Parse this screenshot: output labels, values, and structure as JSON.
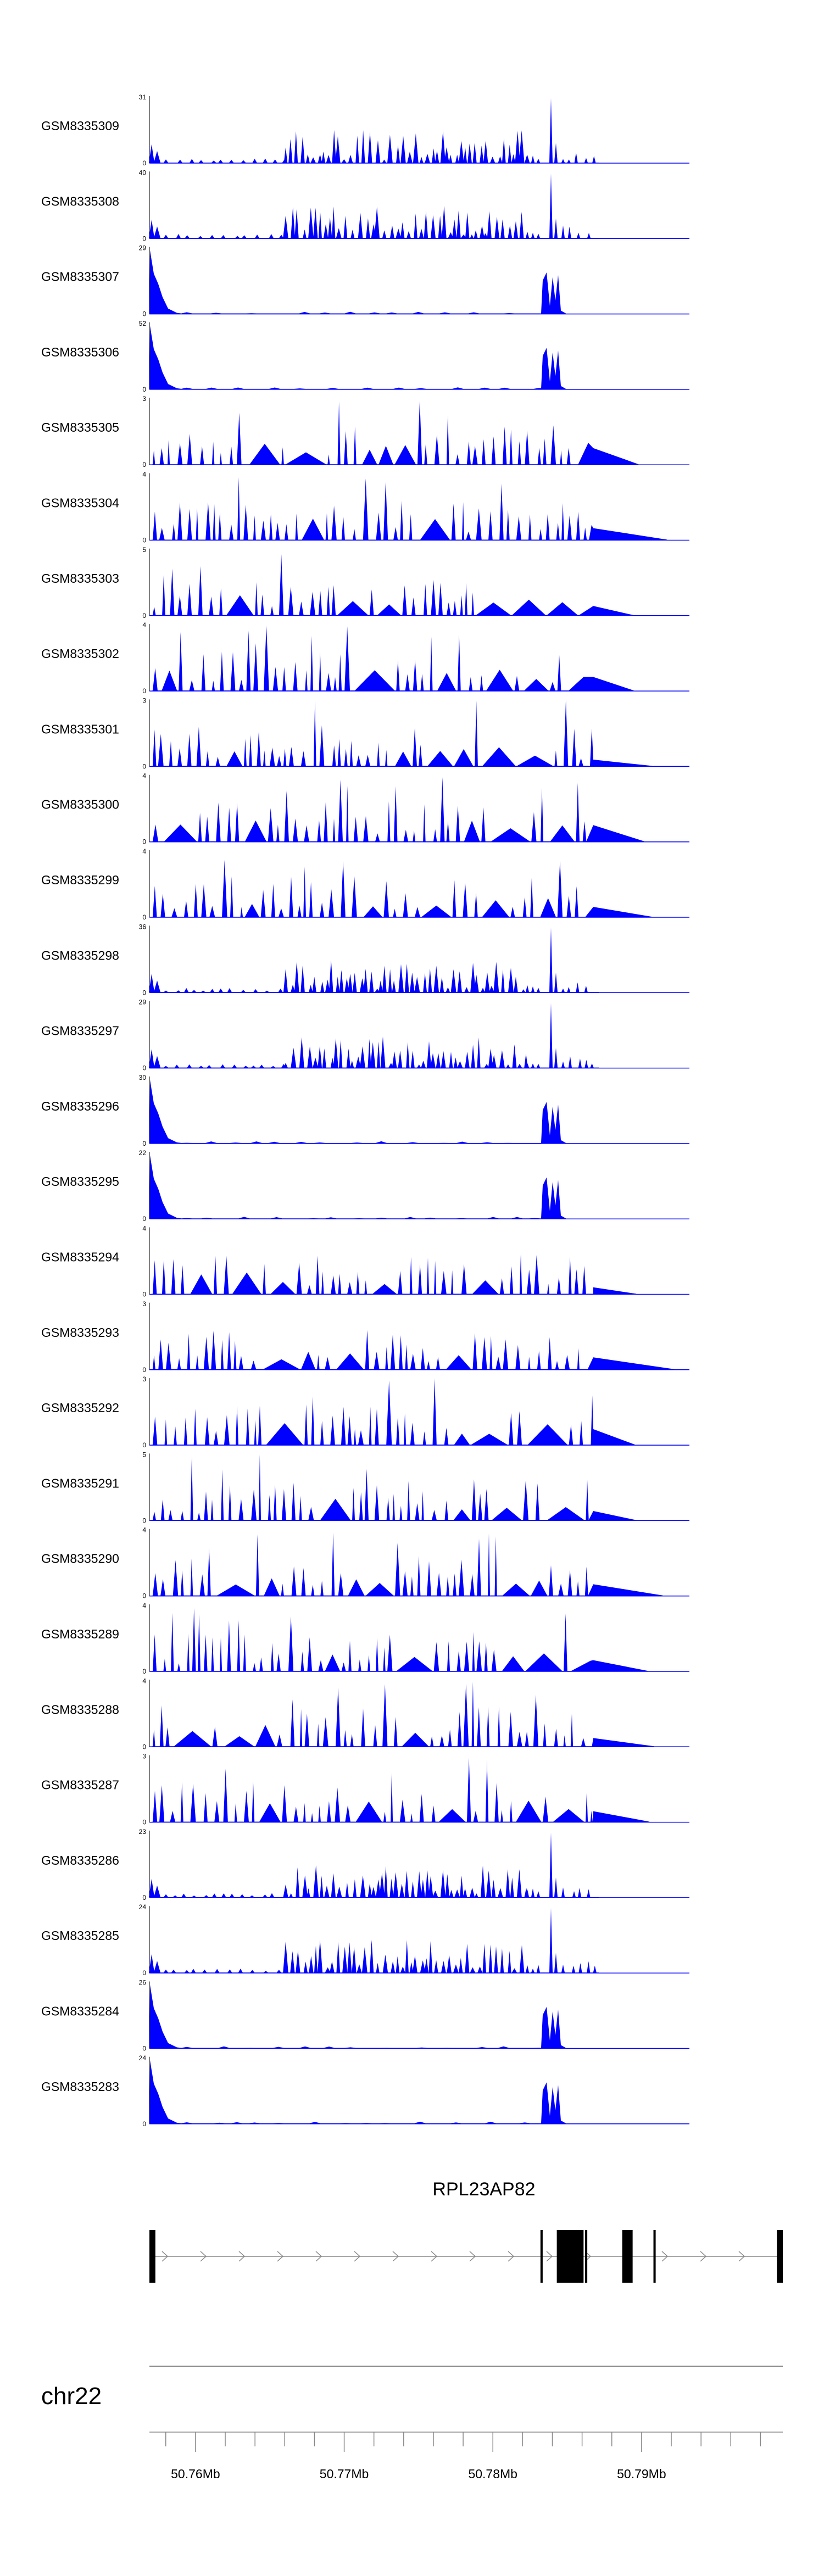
{
  "chart_data": {
    "type": "area",
    "colors": {
      "signal": "#0000ff",
      "gene": "#000000",
      "axis": "#888888"
    },
    "x_range_bp": [
      50756900,
      50799500
    ],
    "tracks": [
      {
        "name": "GSM8335309",
        "ymax": "31",
        "profile": "late"
      },
      {
        "name": "GSM8335308",
        "ymax": "40",
        "profile": "late"
      },
      {
        "name": "GSM8335307",
        "ymax": "29",
        "profile": "edges"
      },
      {
        "name": "GSM8335306",
        "ymax": "52",
        "profile": "edges"
      },
      {
        "name": "GSM8335305",
        "ymax": "3",
        "profile": "sparse"
      },
      {
        "name": "GSM8335304",
        "ymax": "4",
        "profile": "sparse"
      },
      {
        "name": "GSM8335303",
        "ymax": "5",
        "profile": "sparse"
      },
      {
        "name": "GSM8335302",
        "ymax": "4",
        "profile": "sparse"
      },
      {
        "name": "GSM8335301",
        "ymax": "3",
        "profile": "sparse"
      },
      {
        "name": "GSM8335300",
        "ymax": "4",
        "profile": "sparse"
      },
      {
        "name": "GSM8335299",
        "ymax": "4",
        "profile": "sparse"
      },
      {
        "name": "GSM8335298",
        "ymax": "36",
        "profile": "late"
      },
      {
        "name": "GSM8335297",
        "ymax": "29",
        "profile": "late"
      },
      {
        "name": "GSM8335296",
        "ymax": "30",
        "profile": "edges"
      },
      {
        "name": "GSM8335295",
        "ymax": "22",
        "profile": "edges"
      },
      {
        "name": "GSM8335294",
        "ymax": "4",
        "profile": "sparse"
      },
      {
        "name": "GSM8335293",
        "ymax": "3",
        "profile": "sparse"
      },
      {
        "name": "GSM8335292",
        "ymax": "3",
        "profile": "sparse"
      },
      {
        "name": "GSM8335291",
        "ymax": "5",
        "profile": "sparse"
      },
      {
        "name": "GSM8335290",
        "ymax": "4",
        "profile": "sparse"
      },
      {
        "name": "GSM8335289",
        "ymax": "4",
        "profile": "sparse"
      },
      {
        "name": "GSM8335288",
        "ymax": "4",
        "profile": "sparse"
      },
      {
        "name": "GSM8335287",
        "ymax": "3",
        "profile": "sparse"
      },
      {
        "name": "GSM8335286",
        "ymax": "23",
        "profile": "late"
      },
      {
        "name": "GSM8335285",
        "ymax": "24",
        "profile": "late"
      },
      {
        "name": "GSM8335284",
        "ymax": "26",
        "profile": "edges"
      },
      {
        "name": "GSM8335283",
        "ymax": "24",
        "profile": "edges"
      }
    ],
    "ymin_label": "0",
    "gene": {
      "name": "RPL23AP82",
      "exons_bp": [
        [
          50756900,
          50757300
        ],
        [
          50783200,
          50783350
        ],
        [
          50784300,
          50786100
        ],
        [
          50786200,
          50786350
        ],
        [
          50788700,
          50789400
        ],
        [
          50790800,
          50790950
        ],
        [
          50799100,
          50799500
        ]
      ]
    },
    "chromosome": "chr22",
    "axis": {
      "major_ticks": [
        {
          "bp": 50760000,
          "label": "50.76Mb"
        },
        {
          "bp": 50770000,
          "label": "50.77Mb"
        },
        {
          "bp": 50780000,
          "label": "50.78Mb"
        },
        {
          "bp": 50790000,
          "label": "50.79Mb"
        }
      ],
      "minor_step_bp": 2000
    }
  }
}
